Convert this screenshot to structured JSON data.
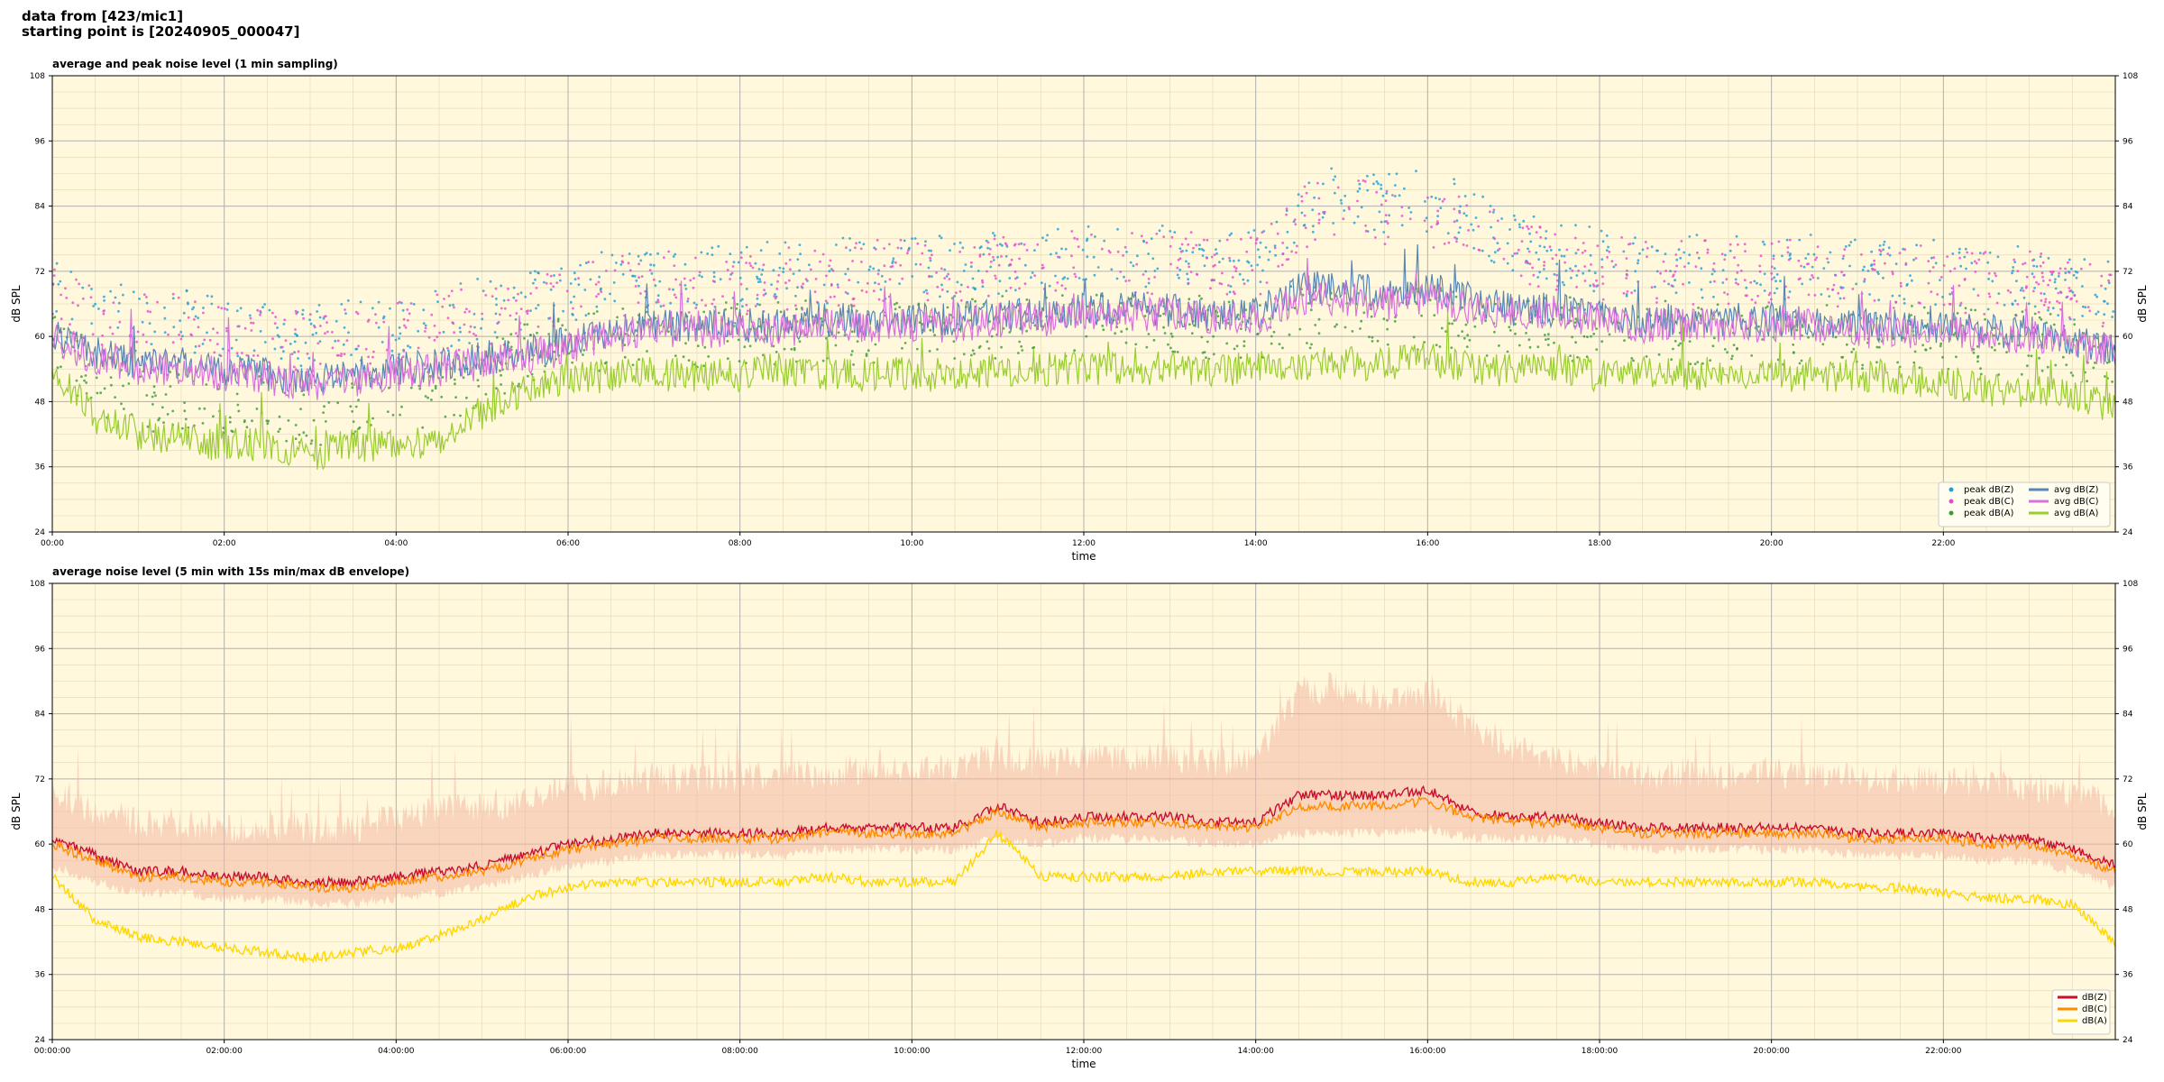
{
  "header": {
    "line1": "data from [423/mic1]",
    "line2": "starting point is [20240905_000047]"
  },
  "colors": {
    "plot_bg": "#fff8dc",
    "grid_major": "#b0b0b0",
    "grid_minor": "#e6dcb8",
    "peak_z": "#1f9fd6",
    "peak_c": "#e64ad0",
    "peak_a": "#3a9a3a",
    "avg_z": "#5a86b4",
    "avg_c": "#d873dc",
    "avg_a": "#9acd32",
    "env_z": "#c8102e",
    "env_c": "#ff8c00",
    "env_a": "#ffd700",
    "envelope": "#f4b8a4"
  },
  "chart_data": [
    {
      "type": "line",
      "title": "average and peak noise level (1 min sampling)",
      "xlabel": "time",
      "ylabel": "dB SPL",
      "x_unit": "hours",
      "xlim": [
        0,
        24
      ],
      "ylim": [
        24,
        108
      ],
      "yticks": [
        24,
        36,
        48,
        60,
        72,
        84,
        96,
        108
      ],
      "ytick_labels": [
        "24",
        "36",
        "48",
        "60",
        "72",
        "84",
        "96",
        "108"
      ],
      "xticks": [
        0,
        2,
        4,
        6,
        8,
        10,
        12,
        14,
        16,
        18,
        20,
        22
      ],
      "xtick_labels": [
        "00:00",
        "02:00",
        "04:00",
        "06:00",
        "08:00",
        "10:00",
        "12:00",
        "14:00",
        "16:00",
        "18:00",
        "20:00",
        "22:00"
      ],
      "grid": true,
      "legend_position": "lower-right",
      "x": [
        0,
        0.5,
        1,
        1.5,
        2,
        2.5,
        3,
        3.5,
        4,
        4.5,
        5,
        5.5,
        6,
        6.5,
        7,
        7.5,
        8,
        8.5,
        9,
        9.5,
        10,
        10.5,
        11,
        11.5,
        12,
        12.5,
        13,
        13.5,
        14,
        14.5,
        15,
        15.5,
        16,
        16.5,
        17,
        17.5,
        18,
        18.5,
        19,
        19.5,
        20,
        20.5,
        21,
        21.5,
        22,
        22.5,
        23,
        23.5,
        24
      ],
      "series": [
        {
          "name": "avg dB(Z)",
          "kind": "line",
          "color_key": "avg_z",
          "values": [
            61,
            57,
            55,
            55,
            54,
            53,
            52,
            53,
            54,
            55,
            56,
            57,
            59,
            61,
            62,
            62,
            62,
            62,
            63,
            63,
            63,
            63,
            64,
            64,
            65,
            65,
            65,
            64,
            64,
            69,
            69,
            68,
            69,
            67,
            65,
            65,
            64,
            63,
            63,
            63,
            63,
            63,
            62,
            62,
            62,
            61,
            61,
            59,
            58
          ]
        },
        {
          "name": "avg dB(C)",
          "kind": "line",
          "color_key": "avg_c",
          "values": [
            60,
            56,
            54,
            54,
            53,
            52,
            51,
            52,
            53,
            54,
            55,
            56,
            58,
            60,
            61,
            61,
            61,
            61,
            62,
            62,
            62,
            62,
            63,
            63,
            64,
            64,
            64,
            63,
            63,
            67,
            67,
            66,
            67,
            65,
            64,
            64,
            63,
            62,
            62,
            62,
            62,
            62,
            61,
            61,
            61,
            60,
            60,
            58,
            57
          ]
        },
        {
          "name": "avg dB(A)",
          "kind": "line",
          "color_key": "avg_a",
          "values": [
            55,
            45,
            42,
            41,
            40,
            40,
            38,
            40,
            40,
            41,
            46,
            50,
            52,
            53,
            53,
            53,
            53,
            54,
            53,
            53,
            53,
            53,
            54,
            54,
            54,
            54,
            54,
            54,
            54,
            55,
            55,
            55,
            56,
            54,
            54,
            54,
            53,
            53,
            53,
            53,
            53,
            53,
            53,
            52,
            52,
            50,
            50,
            50,
            46
          ]
        },
        {
          "name": "peak dB(Z)",
          "kind": "scatter",
          "color_key": "peak_z",
          "values": [
            66,
            63,
            61,
            61,
            60,
            59,
            58,
            59,
            60,
            61,
            63,
            64,
            67,
            68,
            69,
            69,
            69,
            70,
            70,
            71,
            71,
            71,
            72,
            72,
            73,
            73,
            73,
            72,
            72,
            82,
            84,
            82,
            83,
            80,
            76,
            74,
            72,
            71,
            71,
            71,
            71,
            71,
            70,
            70,
            70,
            69,
            69,
            67,
            66
          ]
        },
        {
          "name": "peak dB(C)",
          "kind": "scatter",
          "color_key": "peak_c",
          "values": [
            65,
            62,
            60,
            60,
            59,
            58,
            57,
            58,
            59,
            60,
            62,
            63,
            66,
            67,
            68,
            68,
            68,
            69,
            69,
            70,
            70,
            70,
            71,
            71,
            72,
            72,
            72,
            71,
            71,
            80,
            82,
            80,
            81,
            78,
            74,
            72,
            71,
            70,
            70,
            70,
            70,
            70,
            69,
            69,
            69,
            68,
            68,
            66,
            65
          ]
        },
        {
          "name": "peak dB(A)",
          "kind": "scatter",
          "color_key": "peak_a",
          "values": [
            58,
            50,
            47,
            46,
            46,
            45,
            44,
            45,
            46,
            47,
            51,
            55,
            57,
            58,
            58,
            58,
            59,
            59,
            59,
            59,
            59,
            59,
            60,
            60,
            60,
            60,
            60,
            60,
            60,
            62,
            62,
            61,
            62,
            60,
            60,
            60,
            59,
            59,
            59,
            59,
            59,
            59,
            58,
            58,
            58,
            57,
            57,
            56,
            52
          ]
        }
      ],
      "legend": {
        "col1": [
          "peak dB(Z)",
          "peak dB(C)",
          "peak dB(A)"
        ],
        "col2": [
          "avg dB(Z)",
          "avg dB(C)",
          "avg dB(A)"
        ]
      }
    },
    {
      "type": "area",
      "title": "average noise level (5 min with 15s min/max dB envelope)",
      "xlabel": "time",
      "ylabel": "dB SPL",
      "x_unit": "hours",
      "xlim": [
        0,
        24
      ],
      "ylim": [
        24,
        108
      ],
      "yticks": [
        24,
        36,
        48,
        60,
        72,
        84,
        96,
        108
      ],
      "ytick_labels": [
        "24",
        "36",
        "48",
        "60",
        "72",
        "84",
        "96",
        "108"
      ],
      "xticks": [
        0,
        2,
        4,
        6,
        8,
        10,
        12,
        14,
        16,
        18,
        20,
        22
      ],
      "xtick_labels": [
        "00:00:00",
        "02:00:00",
        "04:00:00",
        "06:00:00",
        "08:00:00",
        "10:00:00",
        "12:00:00",
        "14:00:00",
        "16:00:00",
        "18:00:00",
        "20:00:00",
        "22:00:00"
      ],
      "grid": true,
      "legend_position": "lower-right",
      "x": [
        0,
        0.5,
        1,
        1.5,
        2,
        2.5,
        3,
        3.5,
        4,
        4.5,
        5,
        5.5,
        6,
        6.5,
        7,
        7.5,
        8,
        8.5,
        9,
        9.5,
        10,
        10.5,
        11,
        11.5,
        12,
        12.5,
        13,
        13.5,
        14,
        14.5,
        15,
        15.5,
        16,
        16.5,
        17,
        17.5,
        18,
        18.5,
        19,
        19.5,
        20,
        20.5,
        21,
        21.5,
        22,
        22.5,
        23,
        23.5,
        24
      ],
      "series": [
        {
          "name": "dB(Z)",
          "kind": "line",
          "color_key": "env_z",
          "values": [
            61,
            58,
            55,
            55,
            54,
            54,
            53,
            53,
            54,
            55,
            56,
            58,
            60,
            61,
            62,
            62,
            62,
            62,
            63,
            63,
            63,
            63,
            67,
            64,
            65,
            65,
            65,
            64,
            64,
            69,
            69,
            69,
            70,
            66,
            65,
            65,
            64,
            63,
            63,
            63,
            63,
            63,
            62,
            62,
            62,
            61,
            61,
            59,
            56
          ]
        },
        {
          "name": "dB(C)",
          "kind": "line",
          "color_key": "env_c",
          "values": [
            60,
            57,
            54,
            54,
            53,
            53,
            52,
            52,
            53,
            54,
            55,
            57,
            59,
            60,
            61,
            61,
            61,
            61,
            62,
            62,
            62,
            62,
            66,
            63,
            64,
            64,
            64,
            63,
            63,
            67,
            67,
            67,
            68,
            65,
            64,
            64,
            63,
            62,
            62,
            62,
            62,
            62,
            61,
            61,
            61,
            60,
            60,
            58,
            55
          ]
        },
        {
          "name": "dB(A)",
          "kind": "line",
          "color_key": "env_a",
          "values": [
            54,
            46,
            43,
            42,
            41,
            40,
            39,
            40,
            41,
            43,
            46,
            50,
            52,
            53,
            53,
            53,
            53,
            53,
            54,
            53,
            53,
            53,
            62,
            54,
            54,
            54,
            54,
            55,
            55,
            55,
            55,
            55,
            55,
            53,
            53,
            54,
            53,
            53,
            53,
            53,
            53,
            53,
            52,
            52,
            51,
            50,
            50,
            49,
            42
          ]
        },
        {
          "name": "",
          "kind": "envelope",
          "color_key": "envelope",
          "lower": [
            56,
            53,
            51,
            51,
            50,
            50,
            49,
            49,
            50,
            51,
            52,
            54,
            56,
            57,
            58,
            58,
            58,
            58,
            59,
            59,
            59,
            59,
            61,
            60,
            61,
            61,
            61,
            60,
            60,
            62,
            62,
            62,
            63,
            61,
            61,
            61,
            60,
            59,
            59,
            59,
            59,
            59,
            58,
            58,
            58,
            57,
            57,
            55,
            52
          ],
          "upper": [
            70,
            66,
            64,
            64,
            63,
            63,
            63,
            63,
            65,
            66,
            67,
            68,
            70,
            71,
            72,
            72,
            72,
            73,
            73,
            74,
            74,
            74,
            76,
            75,
            76,
            76,
            76,
            75,
            76,
            88,
            89,
            87,
            88,
            82,
            78,
            76,
            74,
            73,
            73,
            73,
            73,
            73,
            72,
            72,
            72,
            71,
            71,
            69,
            67
          ]
        }
      ],
      "legend": {
        "col1": [
          "dB(Z)",
          "dB(C)",
          "dB(A)"
        ]
      }
    }
  ]
}
